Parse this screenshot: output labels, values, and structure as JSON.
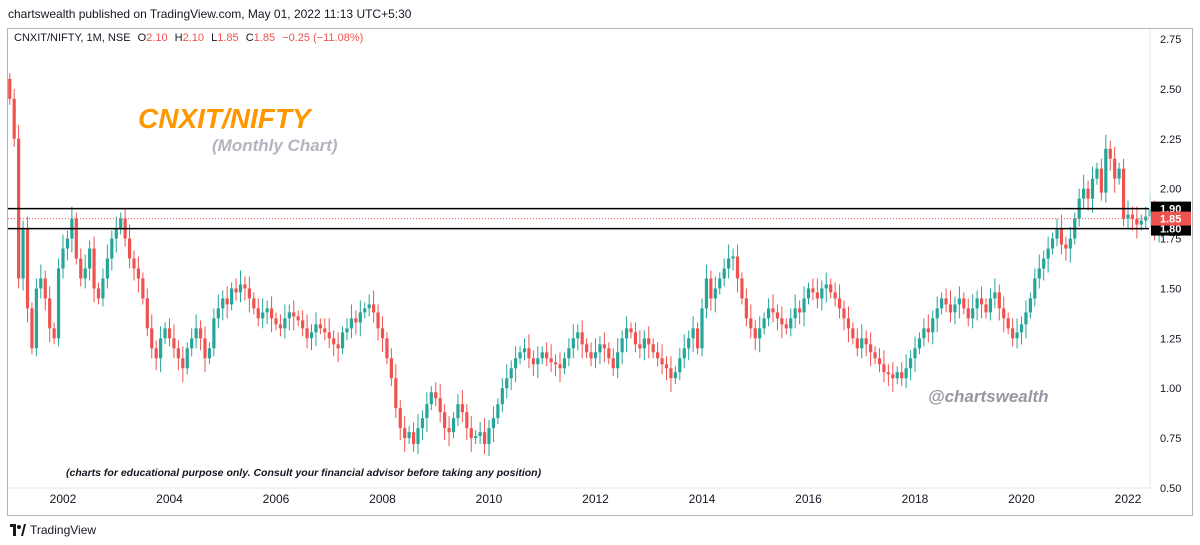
{
  "header": {
    "published_line": "chartswealth published on TradingView.com, May 01, 2022 11:13 UTC+5:30"
  },
  "legend": {
    "symbol": "CNXIT/NIFTY, 1M, NSE",
    "open_label": "O",
    "open": "2.10",
    "high_label": "H",
    "high": "2.10",
    "low_label": "L",
    "low": "1.85",
    "close_label": "C",
    "close": "1.85",
    "change": "−0.25 (−11.08%)"
  },
  "footer": {
    "brand": "TradingView"
  },
  "colors": {
    "up": "#26a69a",
    "down": "#ef5350",
    "title": "#ff9800",
    "subtitle": "#b2b5be",
    "watermark": "#9598a1",
    "level_line": "#000000",
    "price_tag": "#ef5350"
  },
  "chart_data": {
    "type": "candlestick",
    "title": "CNXIT/NIFTY",
    "subtitle": "(Monthly Chart)",
    "watermark": "@chartswealth",
    "note": "(charts for educational purpose only. Consult your financial advisor before taking any position)",
    "ylim": [
      0.5,
      2.8
    ],
    "y_ticks": [
      "0.50",
      "0.75",
      "1.00",
      "1.25",
      "1.50",
      "1.75",
      "2.00",
      "2.25",
      "2.50",
      "2.75"
    ],
    "x_ticks": [
      "2002",
      "2004",
      "2006",
      "2008",
      "2010",
      "2012",
      "2014",
      "2016",
      "2018",
      "2020",
      "2022"
    ],
    "horizontal_levels": [
      {
        "value": 1.9,
        "label": "1.90"
      },
      {
        "value": 1.8,
        "label": "1.80"
      }
    ],
    "last_price": {
      "value": 1.85,
      "label": "1.85"
    },
    "close_series": {
      "start": "2001-01",
      "interval": "1M",
      "close": [
        2.45,
        2.25,
        1.55,
        1.8,
        1.4,
        1.2,
        1.5,
        1.55,
        1.45,
        1.3,
        1.25,
        1.6,
        1.7,
        1.75,
        1.85,
        1.65,
        1.55,
        1.6,
        1.7,
        1.5,
        1.45,
        1.55,
        1.65,
        1.75,
        1.8,
        1.85,
        1.75,
        1.65,
        1.6,
        1.55,
        1.45,
        1.3,
        1.2,
        1.15,
        1.25,
        1.3,
        1.25,
        1.2,
        1.15,
        1.1,
        1.2,
        1.25,
        1.3,
        1.25,
        1.15,
        1.2,
        1.35,
        1.4,
        1.45,
        1.42,
        1.5,
        1.48,
        1.52,
        1.5,
        1.45,
        1.4,
        1.35,
        1.38,
        1.4,
        1.35,
        1.32,
        1.3,
        1.35,
        1.38,
        1.36,
        1.34,
        1.3,
        1.25,
        1.28,
        1.32,
        1.3,
        1.28,
        1.25,
        1.22,
        1.2,
        1.28,
        1.3,
        1.35,
        1.33,
        1.38,
        1.4,
        1.42,
        1.38,
        1.3,
        1.25,
        1.15,
        1.05,
        0.9,
        0.8,
        0.75,
        0.78,
        0.72,
        0.8,
        0.85,
        0.92,
        0.98,
        0.95,
        0.88,
        0.8,
        0.78,
        0.85,
        0.92,
        0.88,
        0.8,
        0.75,
        0.76,
        0.78,
        0.72,
        0.8,
        0.85,
        0.92,
        1.0,
        1.05,
        1.1,
        1.15,
        1.18,
        1.2,
        1.15,
        1.12,
        1.15,
        1.18,
        1.15,
        1.13,
        1.12,
        1.1,
        1.15,
        1.2,
        1.25,
        1.28,
        1.22,
        1.18,
        1.15,
        1.18,
        1.22,
        1.2,
        1.15,
        1.1,
        1.18,
        1.25,
        1.3,
        1.28,
        1.22,
        1.2,
        1.25,
        1.22,
        1.18,
        1.15,
        1.12,
        1.1,
        1.05,
        1.08,
        1.15,
        1.2,
        1.25,
        1.3,
        1.2,
        1.4,
        1.55,
        1.45,
        1.5,
        1.55,
        1.6,
        1.65,
        1.66,
        1.55,
        1.45,
        1.35,
        1.3,
        1.25,
        1.3,
        1.35,
        1.4,
        1.38,
        1.35,
        1.32,
        1.3,
        1.35,
        1.4,
        1.38,
        1.45,
        1.5,
        1.48,
        1.45,
        1.5,
        1.52,
        1.48,
        1.45,
        1.4,
        1.35,
        1.3,
        1.25,
        1.2,
        1.25,
        1.22,
        1.18,
        1.15,
        1.12,
        1.08,
        1.07,
        1.05,
        1.08,
        1.05,
        1.1,
        1.15,
        1.2,
        1.25,
        1.3,
        1.28,
        1.35,
        1.4,
        1.45,
        1.42,
        1.38,
        1.42,
        1.45,
        1.4,
        1.35,
        1.4,
        1.45,
        1.42,
        1.38,
        1.45,
        1.48,
        1.4,
        1.35,
        1.3,
        1.25,
        1.28,
        1.32,
        1.38,
        1.45,
        1.55,
        1.6,
        1.65,
        1.7,
        1.75,
        1.8,
        1.72,
        1.7,
        1.75,
        1.85,
        1.95,
        2.0,
        1.95,
        2.05,
        2.1,
        1.98,
        2.2,
        2.15,
        2.05,
        2.1,
        1.85,
        1.87,
        1.85,
        1.82,
        1.84,
        1.86,
        1.9,
        1.8,
        1.85
      ]
    }
  }
}
